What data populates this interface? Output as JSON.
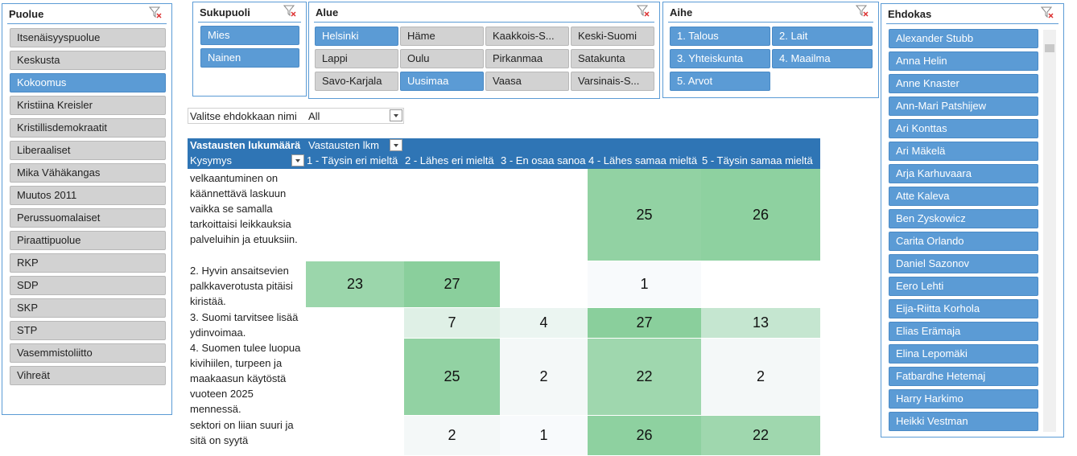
{
  "slicers": [
    {
      "title": "Puolue",
      "items": [
        {
          "label": "Itsenäisyyspuolue",
          "selected": false
        },
        {
          "label": "Keskusta",
          "selected": false
        },
        {
          "label": "Kokoomus",
          "selected": true
        },
        {
          "label": "Kristiina Kreisler",
          "selected": false
        },
        {
          "label": "Kristillisdemokraatit",
          "selected": false
        },
        {
          "label": "Liberaaliset",
          "selected": false
        },
        {
          "label": "Mika Vähäkangas",
          "selected": false
        },
        {
          "label": "Muutos 2011",
          "selected": false
        },
        {
          "label": "Perussuomalaiset",
          "selected": false
        },
        {
          "label": "Piraattipuolue",
          "selected": false
        },
        {
          "label": "RKP",
          "selected": false
        },
        {
          "label": "SDP",
          "selected": false
        },
        {
          "label": "SKP",
          "selected": false
        },
        {
          "label": "STP",
          "selected": false
        },
        {
          "label": "Vasemmistoliitto",
          "selected": false
        },
        {
          "label": "Vihreät",
          "selected": false
        }
      ]
    },
    {
      "title": "Sukupuoli",
      "items": [
        {
          "label": "Mies",
          "selected": true
        },
        {
          "label": "Nainen",
          "selected": true
        }
      ]
    },
    {
      "title": "Alue",
      "items": [
        {
          "label": "Helsinki",
          "selected": true
        },
        {
          "label": "Häme",
          "selected": false
        },
        {
          "label": "Kaakkois-S...",
          "selected": false
        },
        {
          "label": "Keski-Suomi",
          "selected": false
        },
        {
          "label": "Lappi",
          "selected": false
        },
        {
          "label": "Oulu",
          "selected": false
        },
        {
          "label": "Pirkanmaa",
          "selected": false
        },
        {
          "label": "Satakunta",
          "selected": false
        },
        {
          "label": "Savo-Karjala",
          "selected": false
        },
        {
          "label": "Uusimaa",
          "selected": true
        },
        {
          "label": "Vaasa",
          "selected": false
        },
        {
          "label": "Varsinais-S...",
          "selected": false
        }
      ]
    },
    {
      "title": "Aihe",
      "items": [
        {
          "label": "1. Talous",
          "selected": true
        },
        {
          "label": "2. Lait",
          "selected": true
        },
        {
          "label": "3. Yhteiskunta",
          "selected": true
        },
        {
          "label": "4. Maailma",
          "selected": true
        },
        {
          "label": "5. Arvot",
          "selected": true
        }
      ]
    },
    {
      "title": "Ehdokas",
      "items": [
        {
          "label": "Alexander Stubb",
          "selected": true
        },
        {
          "label": "Anna Helin",
          "selected": true
        },
        {
          "label": "Anne Knaster",
          "selected": true
        },
        {
          "label": "Ann-Mari Patshijew",
          "selected": true
        },
        {
          "label": "Ari Konttas",
          "selected": true
        },
        {
          "label": "Ari Mäkelä",
          "selected": true
        },
        {
          "label": "Arja Karhuvaara",
          "selected": true
        },
        {
          "label": "Atte Kaleva",
          "selected": true
        },
        {
          "label": "Ben Zyskowicz",
          "selected": true
        },
        {
          "label": "Carita Orlando",
          "selected": true
        },
        {
          "label": "Daniel Sazonov",
          "selected": true
        },
        {
          "label": "Eero Lehti",
          "selected": true
        },
        {
          "label": "Eija-Riitta Korhola",
          "selected": true
        },
        {
          "label": "Elias Erämaja",
          "selected": true
        },
        {
          "label": "Elina Lepomäki",
          "selected": true
        },
        {
          "label": "Fatbardhe Hetemaj",
          "selected": true
        },
        {
          "label": "Harry Harkimo",
          "selected": true
        },
        {
          "label": "Heikki Vestman",
          "selected": true
        }
      ]
    }
  ],
  "filter": {
    "label": "Valitse ehdokkaan nimi",
    "value": "All"
  },
  "pivot": {
    "corner": "Vastausten lukumäärä",
    "values_header": "Vastausten lkm",
    "row_header": "Kysymys",
    "columns": [
      "1 - Täysin eri mieltä",
      "2 - Lähes eri mieltä",
      "3 - En osaa sanoa",
      "4 - Lähes samaa mieltä",
      "5 - Täysin samaa mieltä"
    ],
    "rows": [
      {
        "label": "velkaantuminen on käännettävä laskuun vaikka se samalla tarkoittaisi leikkauksia palveluihin ja etuuksiin.",
        "cells": [
          null,
          null,
          null,
          25,
          26
        ]
      },
      {
        "label": "2. Hyvin ansaitsevien palkkaverotusta pitäisi kiristää.",
        "cells": [
          23,
          27,
          null,
          1,
          null
        ]
      },
      {
        "label": "3. Suomi tarvitsee lisää ydinvoimaa.",
        "cells": [
          null,
          7,
          4,
          27,
          13
        ]
      },
      {
        "label": "4. Suomen tulee luopua kivihiilen, turpeen ja maakaasun käytöstä vuoteen 2025 mennessä.",
        "cells": [
          null,
          25,
          2,
          22,
          2
        ]
      },
      {
        "label": "sektori on liian suuri ja sitä on syytä",
        "cells": [
          null,
          2,
          1,
          26,
          22
        ]
      }
    ]
  }
}
